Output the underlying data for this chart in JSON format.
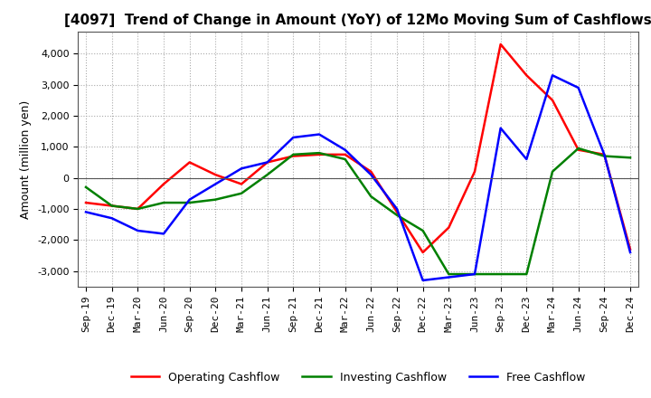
{
  "title": "[4097]  Trend of Change in Amount (YoY) of 12Mo Moving Sum of Cashflows",
  "ylabel": "Amount (million yen)",
  "x_labels": [
    "Sep-19",
    "Dec-19",
    "Mar-20",
    "Jun-20",
    "Sep-20",
    "Dec-20",
    "Mar-21",
    "Jun-21",
    "Sep-21",
    "Dec-21",
    "Mar-22",
    "Jun-22",
    "Sep-22",
    "Dec-22",
    "Mar-23",
    "Jun-23",
    "Sep-23",
    "Dec-23",
    "Mar-24",
    "Jun-24",
    "Sep-24",
    "Dec-24"
  ],
  "operating": [
    -800,
    -900,
    -1000,
    -200,
    500,
    100,
    -200,
    500,
    700,
    750,
    750,
    200,
    -1100,
    -2400,
    -1600,
    200,
    4300,
    3300,
    2500,
    900,
    750,
    -2300
  ],
  "investing": [
    -300,
    -900,
    -1000,
    -800,
    -800,
    -700,
    -500,
    100,
    750,
    800,
    600,
    -600,
    -1200,
    -1700,
    -3100,
    -3100,
    -3100,
    -3100,
    200,
    950,
    700,
    650
  ],
  "free": [
    -1100,
    -1300,
    -1700,
    -1800,
    -700,
    -200,
    300,
    500,
    1300,
    1400,
    900,
    100,
    -1000,
    -3300,
    -3200,
    -3100,
    1600,
    600,
    3300,
    2900,
    750,
    -2400
  ],
  "ylim": [
    -3500,
    4700
  ],
  "yticks": [
    -3000,
    -2000,
    -1000,
    0,
    1000,
    2000,
    3000,
    4000
  ],
  "colors": {
    "operating": "#FF0000",
    "investing": "#008000",
    "free": "#0000FF"
  },
  "background_color": "#FFFFFF",
  "grid_color": "#AAAAAA",
  "title_fontsize": 11,
  "label_fontsize": 9,
  "tick_fontsize": 8
}
